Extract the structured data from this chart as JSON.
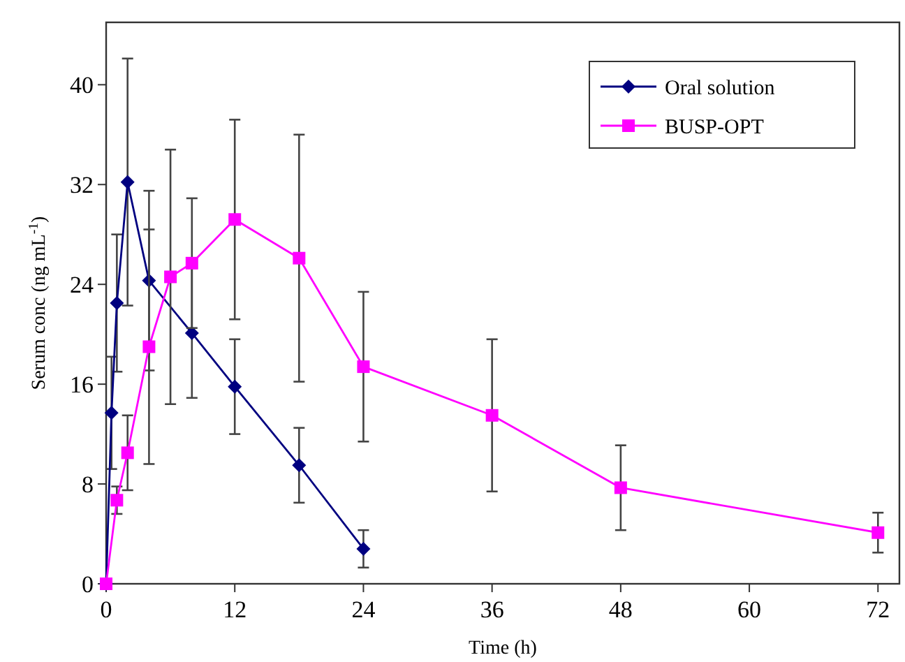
{
  "chart_data": {
    "type": "line",
    "xlabel": "Time (h)",
    "ylabel": "Serum conc (ng mL$^{-1}$)",
    "xlim": [
      0,
      74
    ],
    "ylim": [
      0,
      45
    ],
    "xticks": [
      0,
      12,
      24,
      36,
      48,
      60,
      72
    ],
    "yticks": [
      0,
      8,
      16,
      24,
      32,
      40
    ],
    "grid": false,
    "legend": "top right",
    "line_style": "solid",
    "series": [
      {
        "name": "Oral solution",
        "color": "#000080",
        "marker": "diamond",
        "x": [
          0,
          0.5,
          1,
          2,
          4,
          8,
          12,
          18,
          24
        ],
        "values": [
          0,
          13.7,
          22.5,
          32.2,
          24.3,
          20.1,
          15.8,
          9.5,
          2.8
        ],
        "errors": [
          null,
          4.5,
          5.5,
          9.9,
          7.2,
          5.2,
          3.8,
          3,
          1.5
        ]
      },
      {
        "name": "BUSP-OPT",
        "color": "#ff00ff",
        "marker": "square",
        "x": [
          0,
          1,
          2,
          4,
          6,
          8,
          12,
          18,
          24,
          36,
          48,
          72
        ],
        "values": [
          0,
          6.7,
          10.5,
          19,
          24.6,
          25.7,
          29.2,
          26.1,
          17.4,
          13.5,
          7.7,
          4.1
        ],
        "errors": [
          null,
          1.1,
          3,
          9.4,
          10.2,
          5.2,
          8,
          9.9,
          6,
          6.1,
          3.4,
          1.6
        ]
      }
    ]
  }
}
